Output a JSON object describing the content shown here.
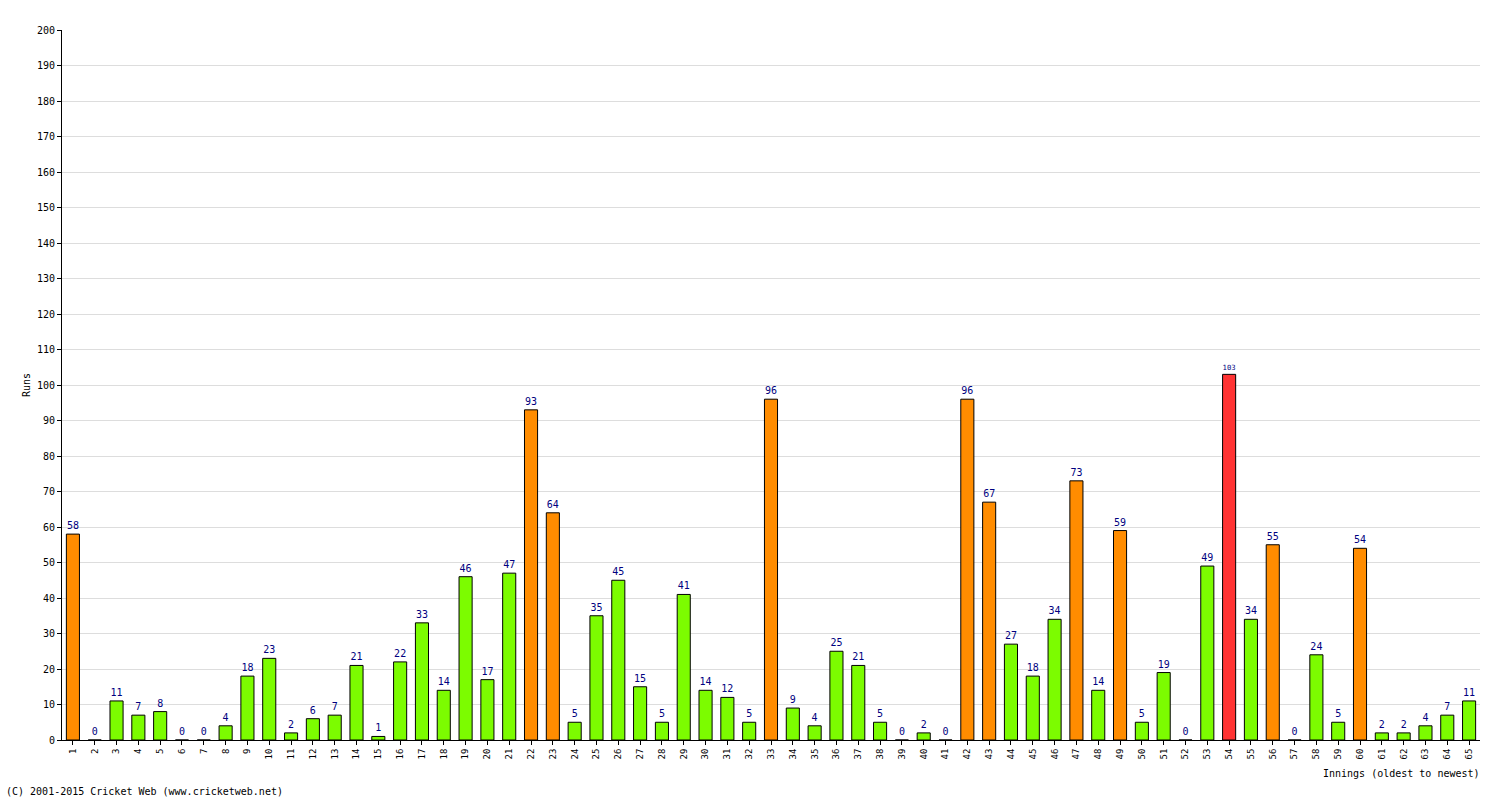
{
  "chart_data": {
    "type": "bar",
    "ylabel": "Runs",
    "xlabel": "Innings (oldest to newest)",
    "annotations": [
      "(C) 2001-2015 Cricket Web (www.cricketweb.net)"
    ],
    "categories": [
      "1",
      "2",
      "3",
      "4",
      "5",
      "6",
      "7",
      "8",
      "9",
      "10",
      "11",
      "12",
      "13",
      "14",
      "15",
      "16",
      "17",
      "18",
      "19",
      "20",
      "21",
      "22",
      "23",
      "24",
      "25",
      "26",
      "27",
      "28",
      "29",
      "30",
      "31",
      "32",
      "33",
      "34",
      "35",
      "36",
      "37",
      "38",
      "39",
      "40",
      "41",
      "42",
      "43",
      "44",
      "45",
      "46",
      "47",
      "48",
      "49",
      "50",
      "51",
      "52",
      "53",
      "54",
      "55",
      "56",
      "57",
      "58",
      "59",
      "60",
      "61",
      "62",
      "63",
      "64",
      "65"
    ],
    "values": [
      58,
      0,
      11,
      7,
      8,
      0,
      0,
      4,
      18,
      23,
      2,
      6,
      7,
      21,
      1,
      22,
      33,
      14,
      46,
      17,
      47,
      93,
      64,
      5,
      35,
      45,
      15,
      5,
      41,
      14,
      12,
      5,
      96,
      9,
      4,
      25,
      21,
      5,
      0,
      2,
      0,
      96,
      67,
      27,
      18,
      34,
      73,
      14,
      59,
      5,
      19,
      0,
      49,
      103,
      34,
      55,
      0,
      24,
      5,
      54,
      2,
      2,
      4,
      7,
      11
    ],
    "colors": [
      "#ff8c00",
      "#7cfc00",
      "#7cfc00",
      "#7cfc00",
      "#7cfc00",
      "#7cfc00",
      "#7cfc00",
      "#7cfc00",
      "#7cfc00",
      "#7cfc00",
      "#7cfc00",
      "#7cfc00",
      "#7cfc00",
      "#7cfc00",
      "#7cfc00",
      "#7cfc00",
      "#7cfc00",
      "#7cfc00",
      "#7cfc00",
      "#7cfc00",
      "#7cfc00",
      "#ff8c00",
      "#ff8c00",
      "#7cfc00",
      "#7cfc00",
      "#7cfc00",
      "#7cfc00",
      "#7cfc00",
      "#7cfc00",
      "#7cfc00",
      "#7cfc00",
      "#7cfc00",
      "#ff8c00",
      "#7cfc00",
      "#7cfc00",
      "#7cfc00",
      "#7cfc00",
      "#7cfc00",
      "#7cfc00",
      "#7cfc00",
      "#7cfc00",
      "#ff8c00",
      "#ff8c00",
      "#7cfc00",
      "#7cfc00",
      "#7cfc00",
      "#ff8c00",
      "#7cfc00",
      "#ff8c00",
      "#7cfc00",
      "#7cfc00",
      "#7cfc00",
      "#7cfc00",
      "#ff3333",
      "#7cfc00",
      "#ff8c00",
      "#7cfc00",
      "#7cfc00",
      "#7cfc00",
      "#ff8c00",
      "#7cfc00",
      "#7cfc00",
      "#7cfc00",
      "#7cfc00",
      "#7cfc00"
    ],
    "ylim": [
      0,
      200
    ],
    "yticks": [
      0,
      10,
      20,
      30,
      40,
      50,
      60,
      70,
      80,
      90,
      100,
      110,
      120,
      130,
      140,
      150,
      160,
      170,
      180,
      190,
      200
    ],
    "grid": true,
    "data_labels": true
  }
}
